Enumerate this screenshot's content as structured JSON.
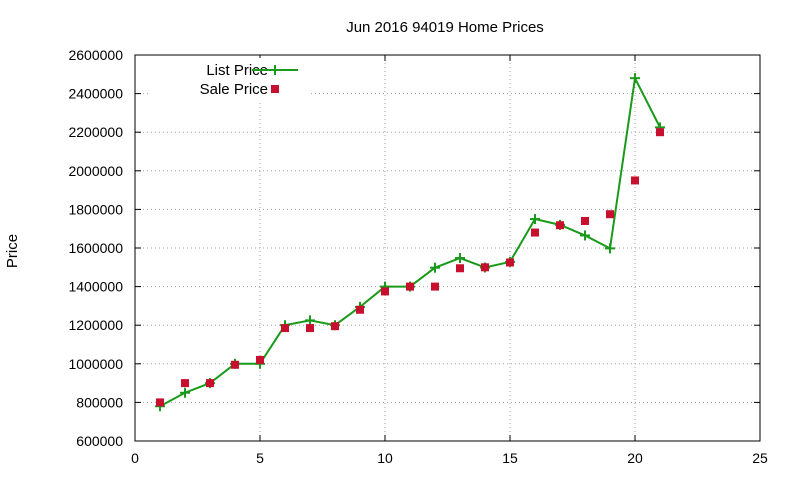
{
  "chart_data": {
    "type": "line",
    "title": "Jun 2016 94019 Home Prices",
    "xlabel": "",
    "ylabel": "Price",
    "xlim": [
      0,
      25
    ],
    "ylim": [
      600000,
      2600000
    ],
    "x_ticks": [
      0,
      5,
      10,
      15,
      20,
      25
    ],
    "y_ticks": [
      600000,
      800000,
      1000000,
      1200000,
      1400000,
      1600000,
      1800000,
      2000000,
      2200000,
      2400000,
      2600000
    ],
    "x_tick_labels": [
      "0",
      "5",
      "10",
      "15",
      "20",
      "25"
    ],
    "y_tick_labels": [
      "600000",
      "800000",
      "1000000",
      "1200000",
      "1400000",
      "1600000",
      "1800000",
      "2000000",
      "2200000",
      "2400000",
      "2600000"
    ],
    "grid": true,
    "legend_position": "top-left",
    "series": [
      {
        "name": "List Price",
        "style": "line-plus",
        "color": "#1a9a1a",
        "x": [
          1,
          2,
          3,
          4,
          5,
          6,
          7,
          8,
          9,
          10,
          11,
          12,
          13,
          14,
          15,
          16,
          17,
          18,
          19,
          20,
          21
        ],
        "values": [
          780000,
          850000,
          900000,
          1000000,
          1000000,
          1200000,
          1225000,
          1200000,
          1295000,
          1400000,
          1400000,
          1498000,
          1548000,
          1499000,
          1528000,
          1750000,
          1720000,
          1665000,
          1598000,
          2480000,
          2225000
        ]
      },
      {
        "name": "Sale Price",
        "style": "square-marker",
        "color": "#c8102e",
        "x": [
          1,
          2,
          3,
          4,
          5,
          6,
          7,
          8,
          9,
          10,
          11,
          12,
          13,
          14,
          15,
          16,
          17,
          18,
          19,
          20,
          21
        ],
        "values": [
          800000,
          900000,
          900000,
          995000,
          1020000,
          1185000,
          1185000,
          1195000,
          1280000,
          1375000,
          1400000,
          1400000,
          1495000,
          1500000,
          1525000,
          1680000,
          1718000,
          1740000,
          1775000,
          1950000,
          2200000
        ]
      }
    ]
  }
}
